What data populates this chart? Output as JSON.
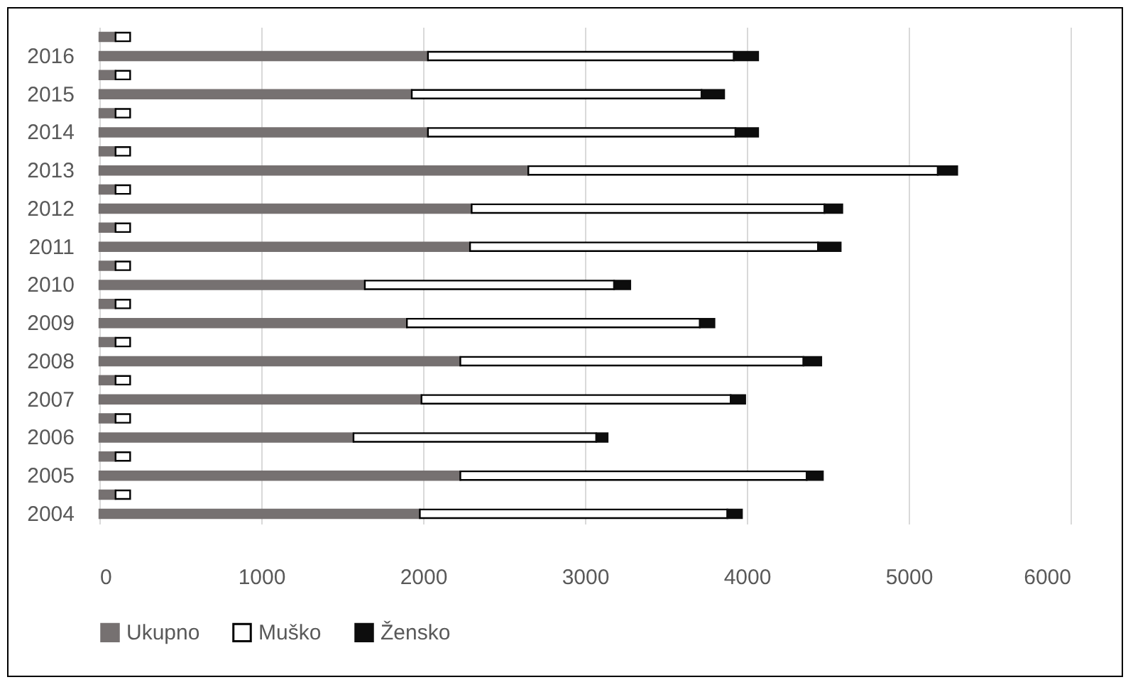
{
  "chart_data": {
    "type": "bar",
    "orientation": "horizontal",
    "stacked": true,
    "categories": [
      null,
      "2016",
      null,
      "2015",
      null,
      "2014",
      null,
      "2013",
      null,
      "2012",
      null,
      "2011",
      null,
      "2010",
      null,
      "2009",
      null,
      "2008",
      null,
      "2007",
      null,
      "2006",
      null,
      "2005",
      null,
      "2004"
    ],
    "series": [
      {
        "name": "Ukupno",
        "color": "#767171",
        "values": [
          100,
          2030,
          100,
          1930,
          100,
          2030,
          100,
          2650,
          100,
          2300,
          100,
          2290,
          100,
          1640,
          100,
          1900,
          100,
          2230,
          100,
          1990,
          100,
          1570,
          100,
          2230,
          100,
          1980
        ]
      },
      {
        "name": "Muško",
        "color": "#ffffff",
        "values": [
          90,
          1890,
          90,
          1790,
          90,
          1900,
          90,
          2530,
          90,
          2180,
          90,
          2150,
          90,
          1540,
          90,
          1810,
          90,
          2120,
          90,
          1910,
          90,
          1500,
          90,
          2140,
          90,
          1900
        ]
      },
      {
        "name": "Žensko",
        "color": "#0d0d0d",
        "values": [
          null,
          150,
          null,
          140,
          null,
          140,
          null,
          120,
          null,
          110,
          null,
          140,
          null,
          100,
          null,
          90,
          null,
          110,
          null,
          90,
          null,
          70,
          null,
          100,
          null,
          90
        ]
      }
    ],
    "xlim": [
      0,
      6000
    ],
    "xticks": [
      0,
      1000,
      2000,
      3000,
      4000,
      5000,
      6000
    ],
    "grid": "x",
    "legend": "bottom"
  }
}
